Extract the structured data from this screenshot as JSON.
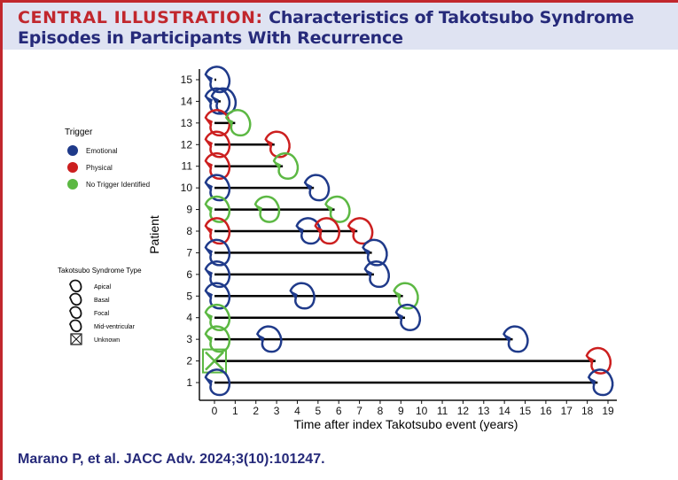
{
  "header": {
    "title_lead": "CENTRAL ILLUSTRATION:",
    "title_rest": " Characteristics of Takotsubo Syndrome Episodes in Participants With Recurrence"
  },
  "citation": "Marano P, et al. JACC Adv. 2024;3(10):101247.",
  "legend": {
    "trigger_title": "Trigger",
    "triggers": [
      {
        "label": "Emotional",
        "color": "#1f3a8a"
      },
      {
        "label": "Physical",
        "color": "#cc1f1f"
      },
      {
        "label": "No Trigger Identified",
        "color": "#5cb843"
      }
    ],
    "type_title": "Takotsubo Syndrome Type",
    "types": [
      "Apical",
      "Basal",
      "Focal",
      "Mid-ventricular",
      "Unknown"
    ]
  },
  "chart_data": {
    "type": "scatter",
    "xlabel": "Time after index Takotsubo event (years)",
    "ylabel": "Patient",
    "xlim": [
      0,
      19
    ],
    "ylim": [
      1,
      15
    ],
    "xticks": [
      0,
      1,
      2,
      3,
      4,
      5,
      6,
      7,
      8,
      9,
      10,
      11,
      12,
      13,
      14,
      15,
      16,
      17,
      18,
      19
    ],
    "yticks": [
      1,
      2,
      3,
      4,
      5,
      6,
      7,
      8,
      9,
      10,
      11,
      12,
      13,
      14,
      15
    ],
    "patients": [
      {
        "id": 15,
        "episodes": [
          {
            "t": 0,
            "trigger": "Emotional"
          }
        ]
      },
      {
        "id": 14,
        "episodes": [
          {
            "t": 0,
            "trigger": "Emotional"
          },
          {
            "t": 0.3,
            "trigger": "Emotional"
          }
        ]
      },
      {
        "id": 13,
        "episodes": [
          {
            "t": 0,
            "trigger": "Physical"
          },
          {
            "t": 1.0,
            "trigger": "No Trigger Identified"
          }
        ]
      },
      {
        "id": 12,
        "episodes": [
          {
            "t": 0,
            "trigger": "Physical"
          },
          {
            "t": 2.9,
            "trigger": "Physical"
          }
        ]
      },
      {
        "id": 11,
        "episodes": [
          {
            "t": 0,
            "trigger": "Physical"
          },
          {
            "t": 3.3,
            "trigger": "No Trigger Identified"
          }
        ]
      },
      {
        "id": 10,
        "episodes": [
          {
            "t": 0,
            "trigger": "Emotional"
          },
          {
            "t": 4.8,
            "trigger": "Emotional"
          }
        ]
      },
      {
        "id": 9,
        "episodes": [
          {
            "t": 0,
            "trigger": "No Trigger Identified"
          },
          {
            "t": 2.4,
            "trigger": "No Trigger Identified"
          },
          {
            "t": 5.8,
            "trigger": "No Trigger Identified"
          }
        ]
      },
      {
        "id": 8,
        "episodes": [
          {
            "t": 0,
            "trigger": "Physical"
          },
          {
            "t": 4.4,
            "trigger": "Emotional"
          },
          {
            "t": 5.3,
            "trigger": "Physical"
          },
          {
            "t": 6.9,
            "trigger": "Physical"
          }
        ]
      },
      {
        "id": 7,
        "episodes": [
          {
            "t": 0,
            "trigger": "Emotional"
          },
          {
            "t": 7.6,
            "trigger": "Emotional"
          }
        ]
      },
      {
        "id": 6,
        "episodes": [
          {
            "t": 0,
            "trigger": "Emotional"
          },
          {
            "t": 7.7,
            "trigger": "Emotional"
          }
        ]
      },
      {
        "id": 5,
        "episodes": [
          {
            "t": 0,
            "trigger": "Emotional"
          },
          {
            "t": 4.1,
            "trigger": "Emotional"
          },
          {
            "t": 9.1,
            "trigger": "No Trigger Identified"
          }
        ]
      },
      {
        "id": 4,
        "episodes": [
          {
            "t": 0,
            "trigger": "No Trigger Identified"
          },
          {
            "t": 9.2,
            "trigger": "Emotional"
          }
        ]
      },
      {
        "id": 3,
        "episodes": [
          {
            "t": 0,
            "trigger": "No Trigger Identified"
          },
          {
            "t": 2.5,
            "trigger": "Emotional"
          },
          {
            "t": 14.4,
            "trigger": "Emotional"
          }
        ]
      },
      {
        "id": 2,
        "episodes": [
          {
            "t": 0,
            "trigger": "No Trigger Identified",
            "type": "Unknown"
          },
          {
            "t": 18.4,
            "trigger": "Physical"
          }
        ]
      },
      {
        "id": 1,
        "episodes": [
          {
            "t": 0,
            "trigger": "Emotional"
          },
          {
            "t": 18.5,
            "trigger": "Emotional"
          }
        ]
      }
    ]
  }
}
